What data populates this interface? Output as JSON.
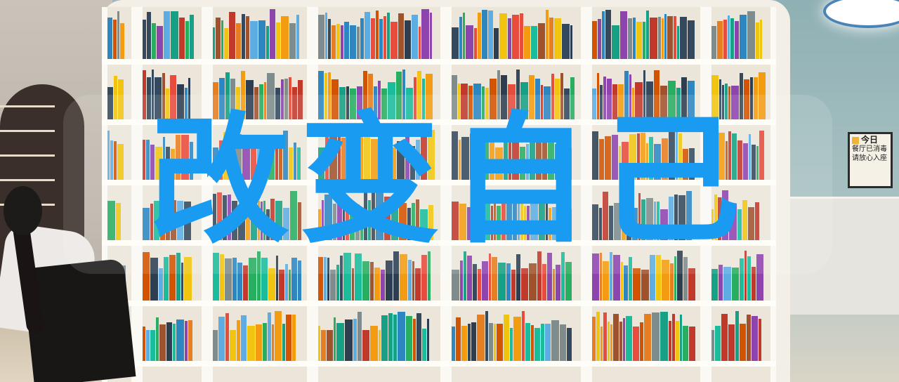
{
  "overlay": {
    "headline": "改变自己"
  },
  "sign": {
    "badge": "今日",
    "line1": "餐厅已消毒",
    "line2": "请放心入座"
  },
  "colors": {
    "headline": "#1a9bf2",
    "wall": "#9fb6bd",
    "shelf": "#f3efe6"
  }
}
